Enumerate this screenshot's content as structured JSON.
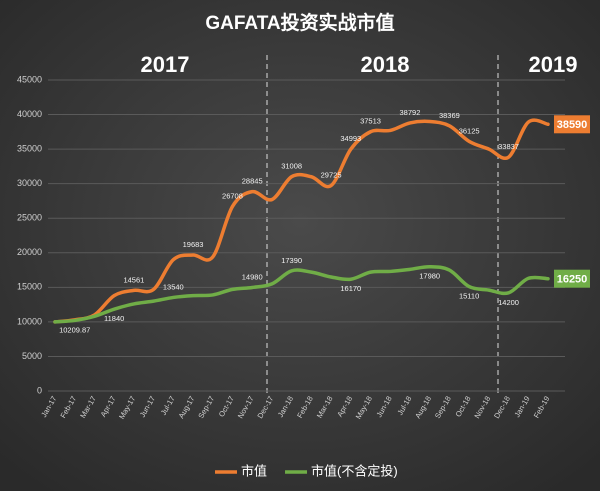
{
  "chart_data": {
    "type": "line",
    "title": "GAFATA投资实战市值",
    "annotations": [
      "2017",
      "2018",
      "2019"
    ],
    "categories": [
      "Jan-17",
      "Feb-17",
      "Mar-17",
      "Apr-17",
      "May-17",
      "Jun-17",
      "Jul-17",
      "Aug-17",
      "Sep-17",
      "Oct-17",
      "Nov-17",
      "Dec-17",
      "Jan-18",
      "Feb-18",
      "Mar-18",
      "Apr-18",
      "May-18",
      "Jun-18",
      "Jul-18",
      "Aug-18",
      "Sep-18",
      "Oct-18",
      "Nov-18",
      "Dec-18",
      "Jan-19",
      "Feb-19"
    ],
    "series": [
      {
        "name": "市值",
        "color": "#ed7d31",
        "values": [
          10000,
          10300,
          11000,
          13800,
          14561,
          14700,
          19000,
          19683,
          19400,
          26708,
          28845,
          27700,
          31008,
          31000,
          29725,
          34993,
          37513,
          37700,
          38792,
          39000,
          38369,
          36125,
          35000,
          33837,
          38900,
          38590
        ],
        "value_labels": [
          null,
          null,
          null,
          null,
          "14561",
          null,
          null,
          "19683",
          null,
          "26708",
          "28845",
          null,
          "31008",
          null,
          "29725",
          "34993",
          "37513",
          null,
          "38792",
          null,
          "38369",
          "36125",
          null,
          "33837",
          null,
          "38590"
        ]
      },
      {
        "name": "市值(不含定投)",
        "color": "#70ad47",
        "values": [
          10000,
          10209.87,
          10800,
          11840,
          12600,
          13000,
          13540,
          13800,
          13900,
          14700,
          14980,
          15500,
          17390,
          17200,
          16500,
          16170,
          17200,
          17300,
          17600,
          17980,
          17500,
          15110,
          14600,
          14200,
          16300,
          16250
        ],
        "value_labels": [
          null,
          "10209.87",
          null,
          "11840",
          null,
          null,
          "13540",
          null,
          null,
          null,
          "14980",
          null,
          "17390",
          null,
          null,
          "16170",
          null,
          null,
          null,
          "17980",
          null,
          "15110",
          null,
          "14200",
          null,
          "16250"
        ]
      }
    ],
    "ylim": [
      0,
      45000
    ],
    "yticks": [
      0,
      5000,
      10000,
      15000,
      20000,
      25000,
      30000,
      35000,
      40000,
      45000
    ],
    "grid": true
  }
}
